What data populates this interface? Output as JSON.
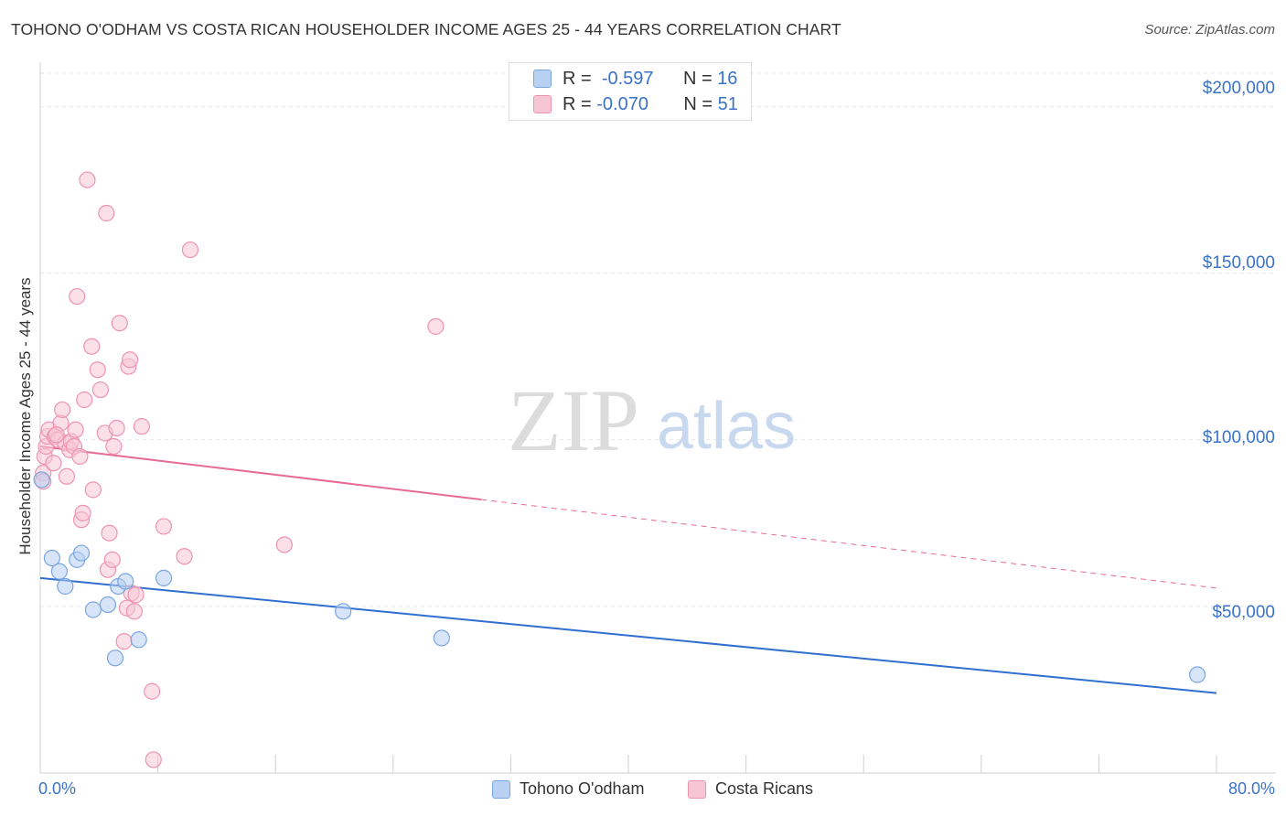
{
  "title": "TOHONO O'ODHAM VS COSTA RICAN HOUSEHOLDER INCOME AGES 25 - 44 YEARS CORRELATION CHART",
  "source": "Source: ZipAtlas.com",
  "watermark": {
    "zip": "ZIP",
    "atlas": "atlas"
  },
  "legend": {
    "r_label": "R =",
    "n_label": "N =",
    "series1": {
      "r": "-0.597",
      "n": "16"
    },
    "series2": {
      "r": "-0.070",
      "n": "51"
    }
  },
  "colors": {
    "blue_fill": "#b8d0f2",
    "blue_stroke": "#7aa6e0",
    "blue_line": "#2f6fd0",
    "pink_fill": "#f7c6d5",
    "pink_stroke": "#ee93b1",
    "pink_line": "#e86a93",
    "grid": "#e6e6e6",
    "axis_text": "#3a72c9"
  },
  "chart_data": {
    "type": "scatter",
    "title": "TOHONO O'ODHAM VS COSTA RICAN HOUSEHOLDER INCOME AGES 25 - 44 YEARS CORRELATION CHART",
    "xlabel": "",
    "ylabel": "Householder Income Ages 25 - 44 years",
    "xlim": [
      0,
      80
    ],
    "ylim": [
      0,
      210000
    ],
    "x_tick_labels": [
      "0.0%",
      "80.0%"
    ],
    "y_ticks": [
      50000,
      100000,
      150000,
      200000
    ],
    "y_tick_labels": [
      "$50,000",
      "$100,000",
      "$150,000",
      "$200,000"
    ],
    "legend_position": "top-center",
    "series": [
      {
        "name": "Tohono O'odham",
        "color": "blue",
        "points": [
          [
            0.1,
            88000
          ],
          [
            0.8,
            64500
          ],
          [
            1.3,
            60500
          ],
          [
            1.7,
            56000
          ],
          [
            2.5,
            64000
          ],
          [
            2.8,
            66000
          ],
          [
            3.6,
            49000
          ],
          [
            4.6,
            50500
          ],
          [
            5.1,
            34500
          ],
          [
            5.3,
            56000
          ],
          [
            5.8,
            57500
          ],
          [
            6.7,
            40000
          ],
          [
            8.4,
            58500
          ],
          [
            20.6,
            48500
          ],
          [
            27.3,
            40500
          ],
          [
            78.7,
            29500
          ]
        ],
        "trend": {
          "x": [
            0,
            80
          ],
          "y": [
            58500,
            24000
          ],
          "dashed_from": null
        }
      },
      {
        "name": "Costa Ricans",
        "color": "pink",
        "points": [
          [
            0.2,
            90000
          ],
          [
            0.3,
            95000
          ],
          [
            0.4,
            98000
          ],
          [
            0.5,
            101000
          ],
          [
            0.6,
            103000
          ],
          [
            0.9,
            93000
          ],
          [
            1.0,
            101000
          ],
          [
            1.2,
            100000
          ],
          [
            1.4,
            105000
          ],
          [
            1.5,
            109000
          ],
          [
            1.7,
            99000
          ],
          [
            1.8,
            89000
          ],
          [
            2.0,
            97000
          ],
          [
            2.1,
            99500
          ],
          [
            2.3,
            98000
          ],
          [
            2.4,
            103000
          ],
          [
            2.5,
            143000
          ],
          [
            2.7,
            95000
          ],
          [
            2.8,
            76000
          ],
          [
            2.9,
            78000
          ],
          [
            3.0,
            112000
          ],
          [
            3.2,
            178000
          ],
          [
            3.5,
            128000
          ],
          [
            3.6,
            85000
          ],
          [
            3.9,
            121000
          ],
          [
            4.1,
            115000
          ],
          [
            4.4,
            102000
          ],
          [
            4.5,
            168000
          ],
          [
            4.6,
            61000
          ],
          [
            4.7,
            72000
          ],
          [
            4.9,
            64000
          ],
          [
            5.0,
            98000
          ],
          [
            5.2,
            103500
          ],
          [
            5.4,
            135000
          ],
          [
            5.7,
            39500
          ],
          [
            5.9,
            49500
          ],
          [
            6.0,
            122000
          ],
          [
            6.1,
            124000
          ],
          [
            6.2,
            54000
          ],
          [
            6.4,
            48500
          ],
          [
            6.5,
            53500
          ],
          [
            6.9,
            104000
          ],
          [
            7.6,
            24500
          ],
          [
            7.7,
            4000
          ],
          [
            8.4,
            74000
          ],
          [
            9.8,
            65000
          ],
          [
            10.2,
            157000
          ],
          [
            16.6,
            68500
          ],
          [
            26.9,
            134000
          ],
          [
            0.2,
            87500
          ],
          [
            1.1,
            101500
          ]
        ],
        "trend": {
          "x": [
            0,
            80
          ],
          "y": [
            98000,
            55500
          ],
          "dashed_from": 30
        }
      }
    ]
  }
}
